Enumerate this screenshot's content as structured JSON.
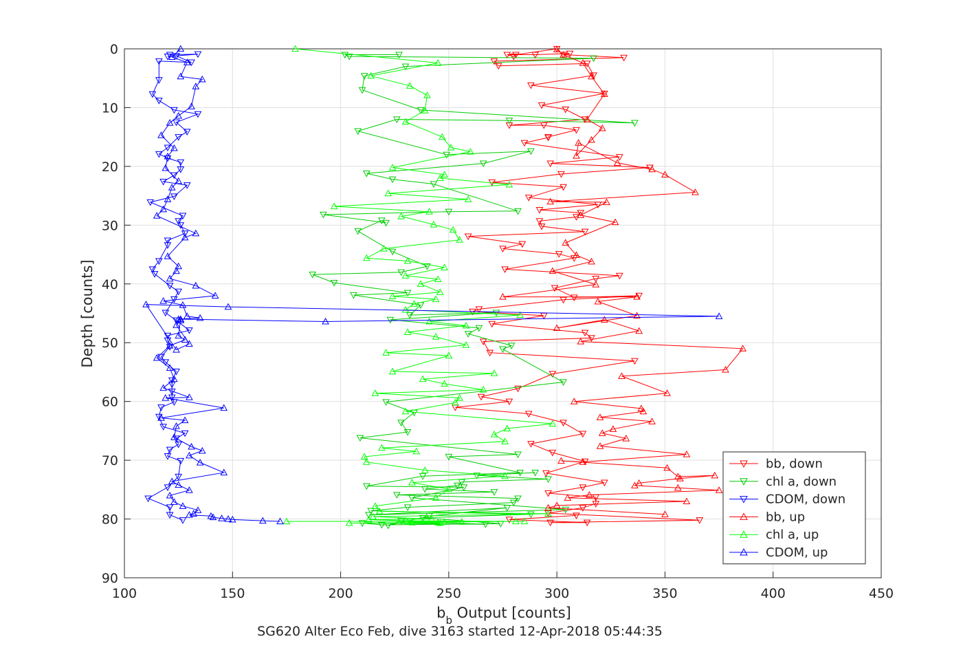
{
  "chart_data": {
    "type": "line",
    "title": "SG620 Alter Eco Feb, dive 3163 started 12-Apr-2018 05:44:35",
    "xlabel": {
      "main": "b",
      "sub": "b",
      "rest": " Output [counts]"
    },
    "ylabel": "Depth [counts]",
    "xlim": [
      100,
      450
    ],
    "ylim": [
      0,
      90
    ],
    "y_reversed": true,
    "grid": true,
    "legend_position": "bottom-right",
    "x_ticks": [
      {
        "value": 100,
        "label": "100"
      },
      {
        "value": 150,
        "label": "150"
      },
      {
        "value": 200,
        "label": "200"
      },
      {
        "value": 250,
        "label": "250"
      },
      {
        "value": 300,
        "label": "300"
      },
      {
        "value": 350,
        "label": "350"
      },
      {
        "value": 400,
        "label": "400"
      },
      {
        "value": 450,
        "label": "450"
      }
    ],
    "y_ticks": [
      {
        "value": 0,
        "label": "0"
      },
      {
        "value": 10,
        "label": "10"
      },
      {
        "value": 20,
        "label": "20"
      },
      {
        "value": 30,
        "label": "30"
      },
      {
        "value": 40,
        "label": "40"
      },
      {
        "value": 50,
        "label": "50"
      },
      {
        "value": 60,
        "label": "60"
      },
      {
        "value": 70,
        "label": "70"
      },
      {
        "value": 80,
        "label": "80"
      },
      {
        "value": 90,
        "label": "90"
      }
    ],
    "series": [
      {
        "name": "bb, down",
        "color": "#ff0000",
        "marker": "triangle-down",
        "x": [
          300,
          281,
          280,
          277,
          290,
          306,
          303,
          331,
          271,
          273,
          314,
          317,
          288,
          322,
          293,
          304,
          313,
          278,
          294,
          309,
          296,
          296,
          285,
          329,
          297,
          343,
          302,
          270,
          303,
          287,
          319,
          292,
          311,
          309,
          292,
          293,
          313,
          259,
          284,
          275,
          301,
          308,
          276,
          329,
          318,
          299,
          308,
          338,
          303,
          264,
          261,
          294,
          270,
          313,
          316,
          266,
          269,
          336,
          298,
          282,
          265,
          278,
          253,
          287,
          303,
          312,
          288,
          298,
          313,
          295,
          322,
          312,
          296,
          318,
          318,
          312,
          296,
          366,
          297,
          314,
          278,
          309
        ],
        "y": [
          0.0,
          1.0,
          1.3,
          1.0,
          1.0,
          0.8,
          1.0,
          1.5,
          2.1,
          2.9,
          2.5,
          4.5,
          6.2,
          7.6,
          9.6,
          10.3,
          12.0,
          13.0,
          13.0,
          13.8,
          15.0,
          15.1,
          16.0,
          18.4,
          19.5,
          20.2,
          21.3,
          22.7,
          23.5,
          25.3,
          26.5,
          27.4,
          27.9,
          28.6,
          29.3,
          30.2,
          31.1,
          31.9,
          33.2,
          34.0,
          34.9,
          35.6,
          37.5,
          38.6,
          39.1,
          40.7,
          42.3,
          42.0,
          42.7,
          44.3,
          44.7,
          45.4,
          46.8,
          48.3,
          49.2,
          49.8,
          51.7,
          53.1,
          55.3,
          57.8,
          59.2,
          60.0,
          61.0,
          62.1,
          63.6,
          65.5,
          67.2,
          68.7,
          70.2,
          72.2,
          73.8,
          74.6,
          75.6,
          76.3,
          77.4,
          78.1,
          79.0,
          80.2,
          80.6,
          80.6,
          80.1,
          79.4
        ]
      },
      {
        "name": "chl a, down",
        "color": "#00cc00",
        "marker": "triangle-down",
        "x": [
          227,
          202,
          204,
          317,
          230,
          211,
          210,
          237,
          336,
          278,
          226,
          208,
          249,
          288,
          266,
          212,
          224,
          243,
          282,
          250,
          192,
          221,
          219,
          208,
          224,
          240,
          228,
          187,
          197,
          231,
          206,
          237,
          232,
          272,
          223,
          264,
          259,
          279,
          275,
          303,
          221,
          234,
          228,
          231,
          209,
          282,
          250,
          283,
          238,
          212,
          257,
          233,
          304,
          213,
          277,
          241,
          222,
          228,
          267,
          210,
          219,
          274,
          238,
          288,
          214,
          231,
          280,
          282,
          226,
          271,
          239,
          254,
          256,
          296,
          263,
          290
        ],
        "y": [
          1.0,
          1.0,
          1.3,
          1.6,
          3.0,
          4.6,
          7.0,
          10.4,
          12.6,
          12.2,
          12.0,
          14.0,
          18.0,
          17.4,
          19.5,
          21.2,
          22.2,
          23.0,
          27.6,
          27.7,
          28.2,
          29.6,
          29.2,
          31.0,
          34.5,
          37.0,
          38.0,
          38.4,
          39.8,
          41.5,
          41.9,
          43.6,
          45.3,
          44.9,
          46.1,
          47.5,
          48.5,
          50.5,
          51.1,
          56.7,
          60.1,
          61.9,
          63.6,
          65.2,
          66.2,
          69.0,
          69.4,
          72.1,
          72.7,
          74.4,
          74.6,
          76.4,
          78.4,
          79.3,
          78.1,
          79.5,
          81.1,
          80.3,
          80.9,
          80.7,
          81.0,
          80.8,
          79.8,
          79.2,
          78.6,
          78.0,
          77.2,
          76.5,
          75.9,
          75.4,
          74.9,
          74.3,
          73.7,
          73.2,
          72.6,
          72.1
        ]
      },
      {
        "name": "CDOM, down",
        "color": "#0000ff",
        "marker": "triangle-down",
        "x": [
          121,
          134,
          120,
          124,
          131,
          116,
          116,
          113,
          116,
          123,
          134,
          124,
          129,
          125,
          120,
          116,
          120,
          126,
          126,
          123,
          118,
          129,
          123,
          112,
          127,
          125,
          126,
          128,
          120,
          120,
          116,
          113,
          114,
          121,
          125,
          123,
          119,
          124,
          130,
          120,
          120,
          121,
          117,
          119,
          124,
          122,
          122,
          122,
          122,
          123,
          117,
          116,
          118,
          128,
          124,
          125,
          121,
          120,
          126,
          125,
          120,
          111,
          121,
          121,
          127
        ],
        "y": [
          1.0,
          0.9,
          1.3,
          1.2,
          2.3,
          2.1,
          5.3,
          7.7,
          8.8,
          10.4,
          11.1,
          12.5,
          14.1,
          15.0,
          16.8,
          17.9,
          18.6,
          19.3,
          20.5,
          21.5,
          22.6,
          23.2,
          25.1,
          26.1,
          28.4,
          29.3,
          30.0,
          31.4,
          32.6,
          33.4,
          36.1,
          37.5,
          38.3,
          40.3,
          41.3,
          42.6,
          44.9,
          46.2,
          47.9,
          48.8,
          49.6,
          50.7,
          52.4,
          53.3,
          54.9,
          56.4,
          57.1,
          58.3,
          59.3,
          60.1,
          61.0,
          62.6,
          64.3,
          65.4,
          66.3,
          67.3,
          68.2,
          69.3,
          70.1,
          72.8,
          74.6,
          76.5,
          78.0,
          79.3,
          80.2
        ]
      },
      {
        "name": "bb, up",
        "color": "#ff0000",
        "marker": "triangle-up",
        "x": [
          300,
          303,
          312,
          316,
          322,
          314,
          321,
          316,
          309,
          310,
          328,
          344,
          350,
          364,
          297,
          323,
          311,
          327,
          304,
          309,
          316,
          298,
          318,
          275,
          337,
          319,
          337,
          300,
          322,
          338,
          311,
          386,
          378,
          330,
          351,
          308,
          339,
          340,
          320,
          344,
          326,
          321,
          332,
          320,
          360,
          312,
          302,
          351,
          356,
          373,
          357,
          338,
          336,
          356,
          375,
          315,
          305,
          360,
          300,
          296,
          350
        ],
        "y": [
          0.1,
          1.0,
          2.4,
          4.7,
          7.7,
          12.0,
          13.5,
          15.5,
          18.2,
          16.0,
          19.4,
          20.5,
          21.4,
          24.4,
          26.0,
          26.1,
          28.3,
          29.5,
          33.0,
          35.1,
          36.2,
          37.8,
          40.1,
          42.2,
          42.2,
          43.0,
          45.4,
          47.5,
          46.1,
          48.0,
          49.8,
          51.0,
          54.6,
          55.7,
          58.6,
          60.0,
          61.2,
          61.7,
          62.7,
          63.4,
          64.7,
          65.4,
          66.3,
          67.6,
          69.0,
          70.3,
          70.1,
          71.3,
          72.8,
          72.6,
          73.1,
          73.9,
          74.3,
          74.7,
          75.1,
          75.9,
          76.4,
          77.0,
          77.7,
          78.1,
          79.2
        ]
      },
      {
        "name": "chl a, up",
        "color": "#00ff00",
        "marker": "triangle-up",
        "x": [
          179,
          245,
          214,
          232,
          240,
          239,
          230,
          247,
          251,
          260,
          224,
          248,
          246,
          278,
          222,
          259,
          197,
          241,
          228,
          243,
          252,
          255,
          220,
          212,
          231,
          248,
          230,
          245,
          237,
          246,
          224,
          244,
          234,
          230,
          283,
          241,
          258,
          231,
          244,
          258,
          221,
          250,
          224,
          271,
          238,
          248,
          266,
          216,
          255,
          253,
          230,
          298,
          277,
          271,
          276,
          219,
          235,
          211,
          212,
          239,
          276,
          233,
          250,
          244,
          216,
          218,
          296,
          215,
          242,
          213,
          230,
          281,
          256,
          245,
          204,
          246,
          233,
          248,
          231,
          285,
          175
        ],
        "y": [
          0.0,
          2.4,
          4.6,
          6.3,
          7.9,
          10.5,
          12.4,
          15.0,
          16.8,
          17.5,
          20.2,
          21.4,
          22.0,
          23.1,
          24.6,
          25.6,
          26.8,
          27.7,
          28.5,
          29.9,
          30.8,
          32.5,
          34.0,
          35.6,
          36.1,
          37.2,
          38.6,
          39.2,
          40.0,
          41.4,
          42.1,
          42.6,
          43.4,
          44.4,
          45.3,
          46.4,
          47.1,
          48.2,
          49.0,
          50.4,
          51.7,
          52.2,
          54.9,
          55.2,
          56.2,
          57.0,
          58.0,
          58.6,
          59.4,
          60.2,
          61.7,
          63.8,
          64.6,
          65.6,
          66.8,
          67.9,
          68.5,
          69.4,
          70.3,
          71.7,
          72.7,
          73.8,
          74.9,
          76.4,
          77.8,
          78.7,
          79.1,
          79.6,
          80.0,
          80.1,
          80.3,
          80.4,
          80.5,
          80.6,
          80.7,
          80.7,
          80.6,
          80.5,
          80.5,
          80.4,
          80.4
        ]
      },
      {
        "name": "CDOM, up",
        "color": "#0000ff",
        "marker": "triangle-up",
        "x": [
          126,
          122,
          129,
          126,
          136,
          133,
          131,
          125,
          121,
          117,
          123,
          120,
          119,
          125,
          122,
          120,
          118,
          115,
          133,
          128,
          120,
          125,
          124,
          121,
          133,
          142,
          118,
          127,
          129,
          135,
          125,
          126,
          124,
          130,
          124,
          110,
          148,
          375,
          193,
          126,
          125,
          128,
          121,
          115,
          121,
          123,
          118,
          130,
          119,
          146,
          117,
          128,
          124,
          123,
          131,
          136,
          130,
          135,
          146,
          122,
          125,
          130,
          121,
          123,
          127,
          134,
          132,
          130,
          140,
          141,
          145,
          148,
          150,
          164,
          172
        ],
        "y": [
          0.0,
          1.4,
          2.3,
          4.7,
          5.2,
          6.4,
          9.8,
          11.4,
          12.6,
          14.7,
          16.9,
          18.3,
          20.3,
          22.5,
          23.6,
          25.6,
          27.3,
          28.4,
          31.4,
          32.1,
          35.3,
          37.0,
          37.8,
          39.1,
          40.3,
          42.0,
          42.9,
          43.6,
          45.5,
          45.8,
          46.0,
          46.2,
          47.0,
          50.2,
          51.2,
          43.5,
          43.9,
          45.5,
          46.4,
          46.0,
          48.8,
          49.5,
          50.5,
          52.6,
          54.3,
          56.2,
          57.7,
          59.3,
          59.4,
          61.1,
          62.8,
          63.2,
          64.2,
          66.1,
          67.7,
          68.4,
          69.2,
          70.4,
          72.1,
          73.6,
          74.2,
          75.1,
          76.0,
          77.1,
          77.8,
          78.5,
          79.1,
          79.3,
          79.5,
          79.7,
          79.9,
          80.0,
          80.1,
          80.3,
          80.4
        ]
      }
    ]
  }
}
